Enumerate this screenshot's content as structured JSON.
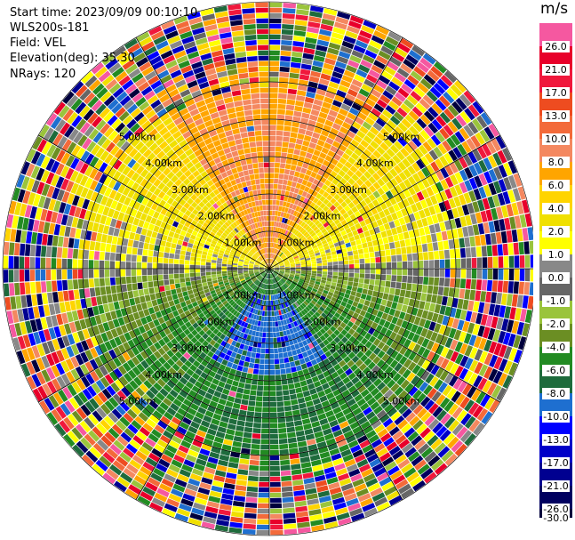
{
  "header": {
    "start_time": "Start time: 2023/09/09 00:10:10",
    "instrument": "WLS200s-181",
    "field": "Field: VEL",
    "elevation": "Elevation(deg): 35.30",
    "nrays": "NRays: 120"
  },
  "colorbar": {
    "unit": "m/s",
    "levels": [
      "26.0",
      "21.0",
      "17.0",
      "13.0",
      "10.0",
      "8.0",
      "6.0",
      "4.0",
      "2.0",
      "1.0",
      "0.0",
      "-1.0",
      "-2.0",
      "-4.0",
      "-6.0",
      "-8.0",
      "-10.0",
      "-13.0",
      "-17.0",
      "-21.0",
      "-26.0",
      "-30.0"
    ],
    "colors": [
      "#f558a0",
      "#e8002a",
      "#f0183c",
      "#ee4c20",
      "#f36a3a",
      "#f48860",
      "#ffa500",
      "#ffd400",
      "#f0e000",
      "#ffff00",
      "#888888",
      "#666666",
      "#9ac43c",
      "#6b8e23",
      "#228b22",
      "#1e6b3c",
      "#1e6fd0",
      "#0000ff",
      "#0000c8",
      "#000090",
      "#000060",
      "#00003c"
    ]
  },
  "range_ring_labels": [
    "1.00km",
    "2.00km",
    "3.00km",
    "4.00km",
    "5.00km"
  ],
  "chart_data": {
    "type": "heatmap",
    "subtype": "PPI radial velocity scan",
    "field": "VEL",
    "unit": "m/s",
    "rays": 120,
    "range_rings_km": [
      1.0,
      2.0,
      3.0,
      4.0,
      5.0
    ],
    "pattern": {
      "north_sector_mean": 8.0,
      "northeast_sector_mean": 4.0,
      "northwest_sector_mean": 5.0,
      "east_west_axis_mean": 0.0,
      "south_sector_mean": -6.0,
      "south_core_mean": -9.0,
      "far_range": "noise"
    },
    "colorbar_range": [
      -30.0,
      26.0
    ]
  }
}
